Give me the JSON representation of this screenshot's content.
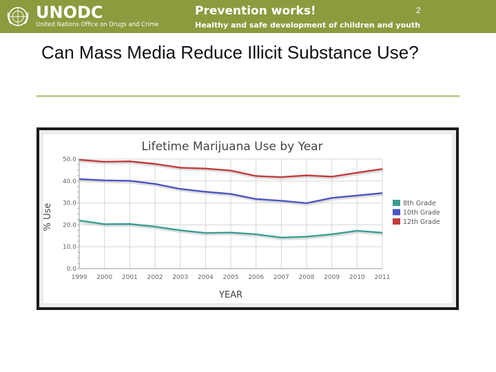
{
  "header": {
    "brand": "UNODC",
    "brand_sub": "United Nations Office on Drugs and Crime",
    "title": "Prevention works!",
    "subtitle": "Healthy and safe development of children and youth",
    "page_number": "2",
    "colors": {
      "band": "#8b9b3e"
    }
  },
  "slide": {
    "title": "Can Mass Media Reduce Illicit Substance Use?"
  },
  "chart_data": {
    "type": "line",
    "title": "Lifetime Marijuana Use by Year",
    "xlabel": "YEAR",
    "ylabel": "% Use",
    "x": [
      "1999",
      "2000",
      "2001",
      "2002",
      "2003",
      "2004",
      "2005",
      "2006",
      "2007",
      "2008",
      "2009",
      "2010",
      "2011"
    ],
    "ylim": [
      0,
      50
    ],
    "yticks": [
      "0.0",
      "10.0",
      "20.0",
      "30.0",
      "40.0",
      "50.0"
    ],
    "grid": true,
    "legend_placement": "right",
    "series": [
      {
        "name": "8th Grade",
        "color": "#3a9e93",
        "values": [
          22.0,
          20.3,
          20.4,
          19.2,
          17.5,
          16.3,
          16.5,
          15.7,
          14.2,
          14.6,
          15.7,
          17.3,
          16.4
        ]
      },
      {
        "name": "10th Grade",
        "color": "#4a55c2",
        "values": [
          40.9,
          40.3,
          40.1,
          38.7,
          36.4,
          35.1,
          34.1,
          31.8,
          31.0,
          29.9,
          32.3,
          33.4,
          34.5
        ]
      },
      {
        "name": "12th Grade",
        "color": "#c23b3b",
        "values": [
          49.7,
          48.8,
          49.0,
          47.8,
          46.1,
          45.7,
          44.8,
          42.3,
          41.8,
          42.6,
          42.0,
          43.8,
          45.5
        ]
      }
    ]
  }
}
